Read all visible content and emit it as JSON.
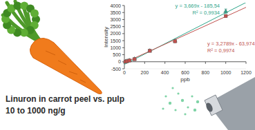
{
  "chart_data": {
    "type": "scatter",
    "y_label": "Intensity",
    "x_label": "ppb",
    "x": [
      10,
      25,
      50,
      100,
      250,
      500,
      1000
    ],
    "series": [
      {
        "color": "#2ea58a",
        "marker": "triangle",
        "values": [
          20,
          60,
          110,
          220,
          800,
          1500,
          3600
        ],
        "errors": [
          10,
          10,
          15,
          20,
          40,
          60,
          150
        ],
        "trendline": {
          "slope": 3.669,
          "intercept": -185.54,
          "equation": "y = 3,669x - 185,54",
          "r2_label": "R² = 0,9934"
        }
      },
      {
        "color": "#c0504d",
        "marker": "square",
        "values": [
          10,
          40,
          90,
          180,
          780,
          1450,
          3250
        ],
        "errors": [
          10,
          10,
          15,
          20,
          40,
          60,
          80
        ],
        "trendline": {
          "slope": 3.2789,
          "intercept": -63.974,
          "equation": "y = 3,2789x - 63,974",
          "r2_label": "R² = 0,9974"
        }
      }
    ],
    "xlim": [
      0,
      1200
    ],
    "xticks": [
      0,
      200,
      400,
      600,
      800,
      1000,
      1200
    ],
    "ylim": [
      -500,
      4000
    ],
    "yticks": [
      -500,
      0,
      500,
      1000,
      1500,
      2000,
      2500,
      3000,
      3500,
      4000
    ],
    "grid": false,
    "annotations": [
      "Linuron in carrot peel vs. pulp",
      "10 to 1000 ng/g"
    ]
  }
}
